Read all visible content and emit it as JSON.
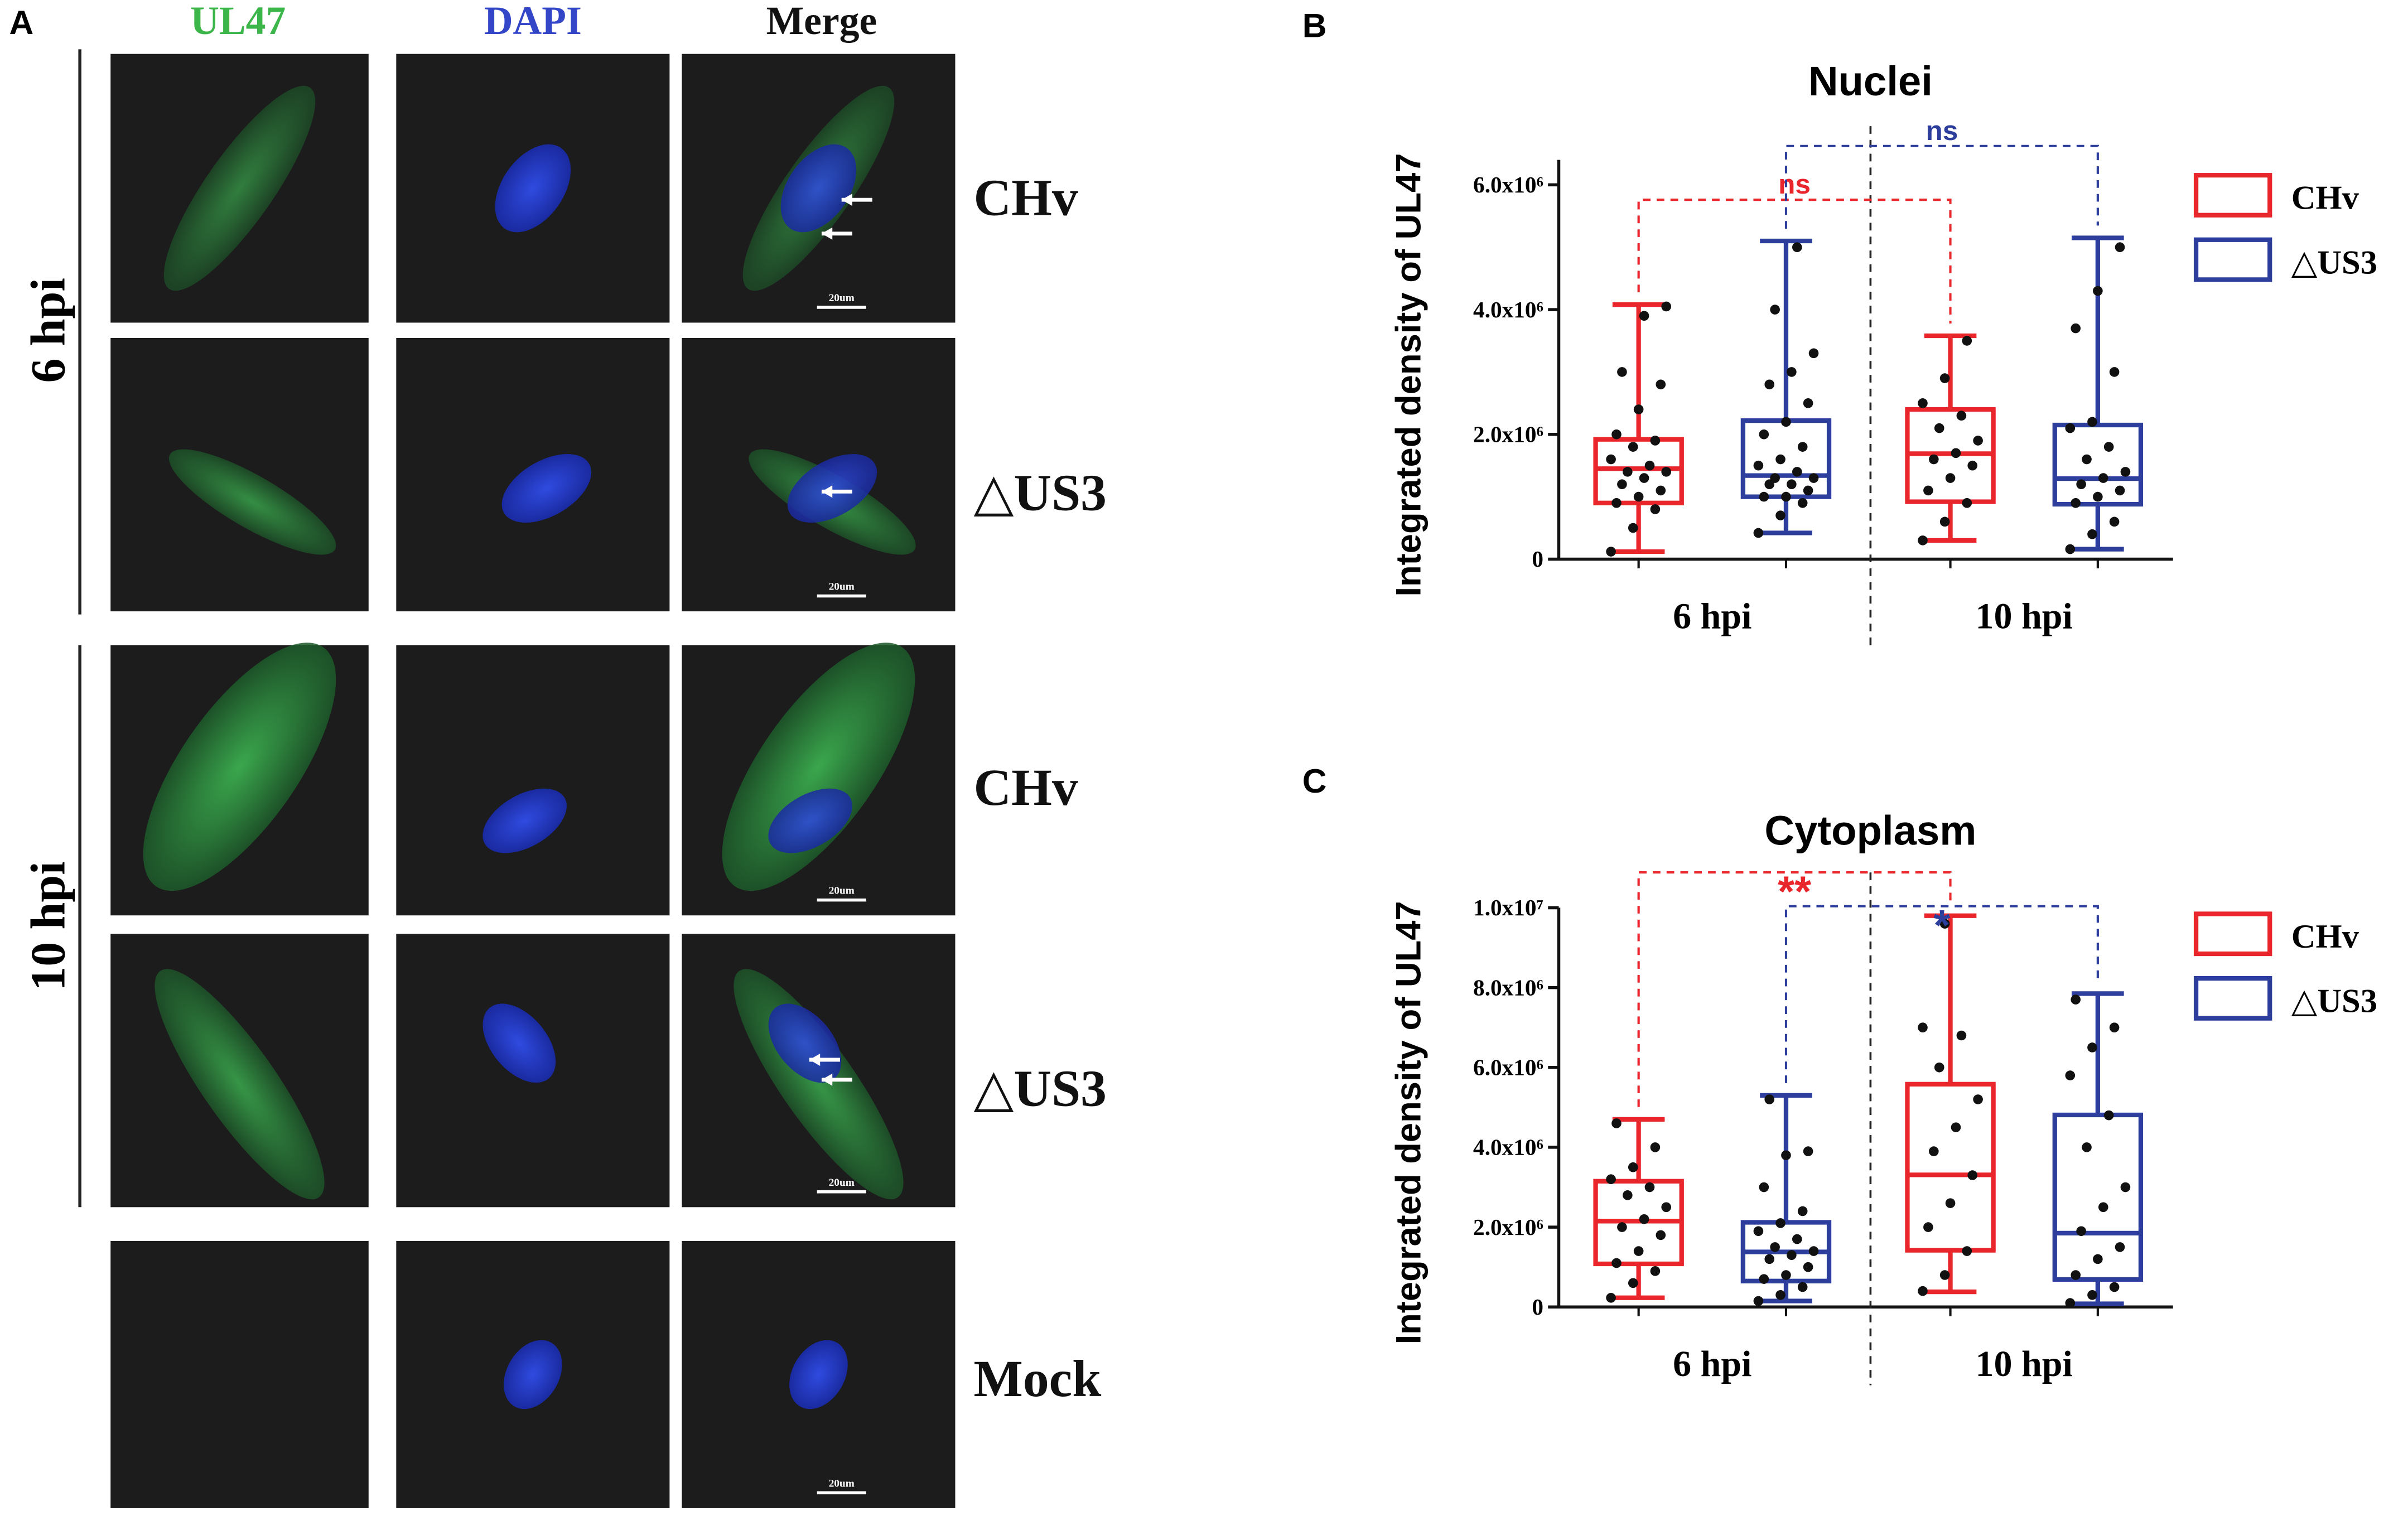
{
  "figure_a": {
    "panel": "A",
    "columns": [
      "UL47",
      "DAPI",
      "Merge"
    ],
    "rows": [
      "CHv",
      "△US3",
      "CHv",
      "△US3",
      "Mock"
    ],
    "time_labels": [
      "6 hpi",
      "10 hpi"
    ],
    "scale_bar": "20um"
  },
  "chart_data": [
    {
      "type": "box",
      "panel": "B",
      "title": "Nuclei",
      "ylabel": "Integrated density of UL47",
      "categories": [
        "6 hpi",
        "10 hpi"
      ],
      "ylim": [
        0,
        6400000.0
      ],
      "yticks": [
        0,
        {
          "value": 2000000.0,
          "label": "2.0x10⁶"
        },
        {
          "value": 4000000.0,
          "label": "4.0x10⁶"
        },
        {
          "value": 6000000.0,
          "label": "6.0x10⁶"
        }
      ],
      "series": [
        {
          "name": "CHv",
          "color": "#e8262b",
          "boxes": [
            {
              "min": 120000.0,
              "q1": 900000.0,
              "median": 1450000.0,
              "q3": 1920000.0,
              "max": 4080000.0,
              "points": [
                120000.0,
                500000.0,
                800000.0,
                900000.0,
                1000000.0,
                1100000.0,
                1200000.0,
                1300000.0,
                1400000.0,
                1400000.0,
                1500000.0,
                1600000.0,
                1800000.0,
                1900000.0,
                2000000.0,
                2400000.0,
                2800000.0,
                3000000.0,
                3900000.0,
                4050000.0
              ]
            },
            {
              "min": 300000.0,
              "q1": 920000.0,
              "median": 1690000.0,
              "q3": 2400000.0,
              "max": 3580000.0,
              "points": [
                300000.0,
                600000.0,
                900000.0,
                1100000.0,
                1300000.0,
                1500000.0,
                1600000.0,
                1700000.0,
                1900000.0,
                2100000.0,
                2300000.0,
                2500000.0,
                2900000.0,
                3500000.0
              ]
            }
          ]
        },
        {
          "name": "△US3",
          "color": "#2e3e9c",
          "boxes": [
            {
              "min": 420000.0,
              "q1": 1000000.0,
              "median": 1340000.0,
              "q3": 2220000.0,
              "max": 5100000.0,
              "points": [
                420000.0,
                700000.0,
                900000.0,
                1000000.0,
                1000000.0,
                1100000.0,
                1200000.0,
                1200000.0,
                1300000.0,
                1300000.0,
                1400000.0,
                1500000.0,
                1600000.0,
                1800000.0,
                2000000.0,
                2200000.0,
                2500000.0,
                2800000.0,
                3000000.0,
                3300000.0,
                4000000.0,
                5000000.0
              ]
            },
            {
              "min": 160000.0,
              "q1": 880000.0,
              "median": 1290000.0,
              "q3": 2150000.0,
              "max": 5150000.0,
              "points": [
                160000.0,
                400000.0,
                600000.0,
                900000.0,
                1000000.0,
                1100000.0,
                1200000.0,
                1300000.0,
                1400000.0,
                1600000.0,
                1800000.0,
                2100000.0,
                2200000.0,
                3000000.0,
                3700000.0,
                4300000.0,
                5000000.0
              ]
            }
          ]
        }
      ],
      "annotations": [
        {
          "text": "ns",
          "series": 0,
          "color": "#e8262b"
        },
        {
          "text": "ns",
          "series": 1,
          "color": "#2e3e9c"
        }
      ]
    },
    {
      "type": "box",
      "panel": "C",
      "title": "Cytoplasm",
      "ylabel": "Integrated density of UL47",
      "categories": [
        "6 hpi",
        "10 hpi"
      ],
      "ylim": [
        0,
        10000000.0
      ],
      "yticks": [
        0,
        {
          "value": 2000000.0,
          "label": "2.0x10⁶"
        },
        {
          "value": 4000000.0,
          "label": "4.0x10⁶"
        },
        {
          "value": 6000000.0,
          "label": "6.0x10⁶"
        },
        {
          "value": 8000000.0,
          "label": "8.0x10⁶"
        },
        {
          "value": 10000000.0,
          "label": "1.0x10⁷"
        }
      ],
      "series": [
        {
          "name": "CHv",
          "color": "#e8262b",
          "boxes": [
            {
              "min": 230000.0,
              "q1": 1080000.0,
              "median": 2150000.0,
              "q3": 3150000.0,
              "max": 4700000.0,
              "points": [
                230000.0,
                600000.0,
                900000.0,
                1100000.0,
                1400000.0,
                1800000.0,
                2000000.0,
                2200000.0,
                2500000.0,
                2800000.0,
                3000000.0,
                3200000.0,
                3500000.0,
                4000000.0,
                4600000.0
              ]
            },
            {
              "min": 380000.0,
              "q1": 1420000.0,
              "median": 3310000.0,
              "q3": 5580000.0,
              "max": 9800000.0,
              "points": [
                400000.0,
                800000.0,
                1400000.0,
                2000000.0,
                2600000.0,
                3300000.0,
                3900000.0,
                4500000.0,
                5200000.0,
                6000000.0,
                6800000.0,
                7000000.0,
                9600000.0
              ]
            }
          ]
        },
        {
          "name": "△US3",
          "color": "#2e3e9c",
          "boxes": [
            {
              "min": 150000.0,
              "q1": 650000.0,
              "median": 1380000.0,
              "q3": 2120000.0,
              "max": 5300000.0,
              "points": [
                150000.0,
                300000.0,
                500000.0,
                700000.0,
                800000.0,
                1000000.0,
                1200000.0,
                1300000.0,
                1400000.0,
                1500000.0,
                1700000.0,
                1900000.0,
                2100000.0,
                2400000.0,
                3000000.0,
                3800000.0,
                3900000.0,
                5200000.0
              ]
            },
            {
              "min": 80000.0,
              "q1": 690000.0,
              "median": 1850000.0,
              "q3": 4810000.0,
              "max": 7850000.0,
              "points": [
                100000.0,
                300000.0,
                500000.0,
                800000.0,
                1200000.0,
                1500000.0,
                1900000.0,
                2500000.0,
                3000000.0,
                4000000.0,
                4800000.0,
                5800000.0,
                6500000.0,
                7000000.0,
                7700000.0
              ]
            }
          ]
        }
      ],
      "annotations": [
        {
          "text": "**",
          "series": 0,
          "color": "#e8262b"
        },
        {
          "text": "*",
          "series": 1,
          "color": "#2e3e9c"
        }
      ]
    }
  ]
}
